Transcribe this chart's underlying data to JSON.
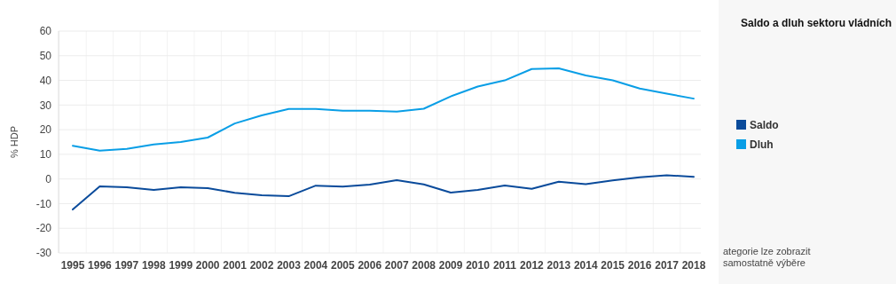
{
  "chart_data": {
    "type": "line",
    "ylabel": "% HDP",
    "legend_title": "Saldo a dluh sektoru vládních",
    "annotations": [
      "ategorie lze zobrazit samostatně výběre"
    ],
    "categories": [
      "1995",
      "1996",
      "1997",
      "1998",
      "1999",
      "2000",
      "2001",
      "2002",
      "2003",
      "2004",
      "2005",
      "2006",
      "2007",
      "2008",
      "2009",
      "2010",
      "2011",
      "2012",
      "2013",
      "2014",
      "2015",
      "2016",
      "2017",
      "2018"
    ],
    "series": [
      {
        "name": "Saldo",
        "color": "#0a4b9b",
        "values": [
          -12.4,
          -3,
          -3.4,
          -4.4,
          -3.4,
          -3.7,
          -5.6,
          -6.6,
          -7,
          -2.7,
          -3.1,
          -2.3,
          -0.5,
          -2.2,
          -5.5,
          -4.4,
          -2.6,
          -4,
          -1.1,
          -2.1,
          -0.6,
          0.7,
          1.5,
          0.9
        ]
      },
      {
        "name": "Dluh",
        "color": "#099ee6",
        "values": [
          13.5,
          11.5,
          12.2,
          14,
          15,
          16.8,
          22.5,
          25.8,
          28.4,
          28.4,
          27.7,
          27.7,
          27.3,
          28.5,
          33.5,
          37.5,
          40,
          44.6,
          44.9,
          42,
          40,
          36.7,
          34.6,
          32.6
        ]
      }
    ],
    "ylim": [
      -30,
      60
    ],
    "yticks": [
      -30,
      -20,
      -10,
      0,
      10,
      20,
      30,
      40,
      50,
      60
    ],
    "grid": true,
    "legend": "right",
    "marker": "none",
    "line_style": "solid"
  }
}
